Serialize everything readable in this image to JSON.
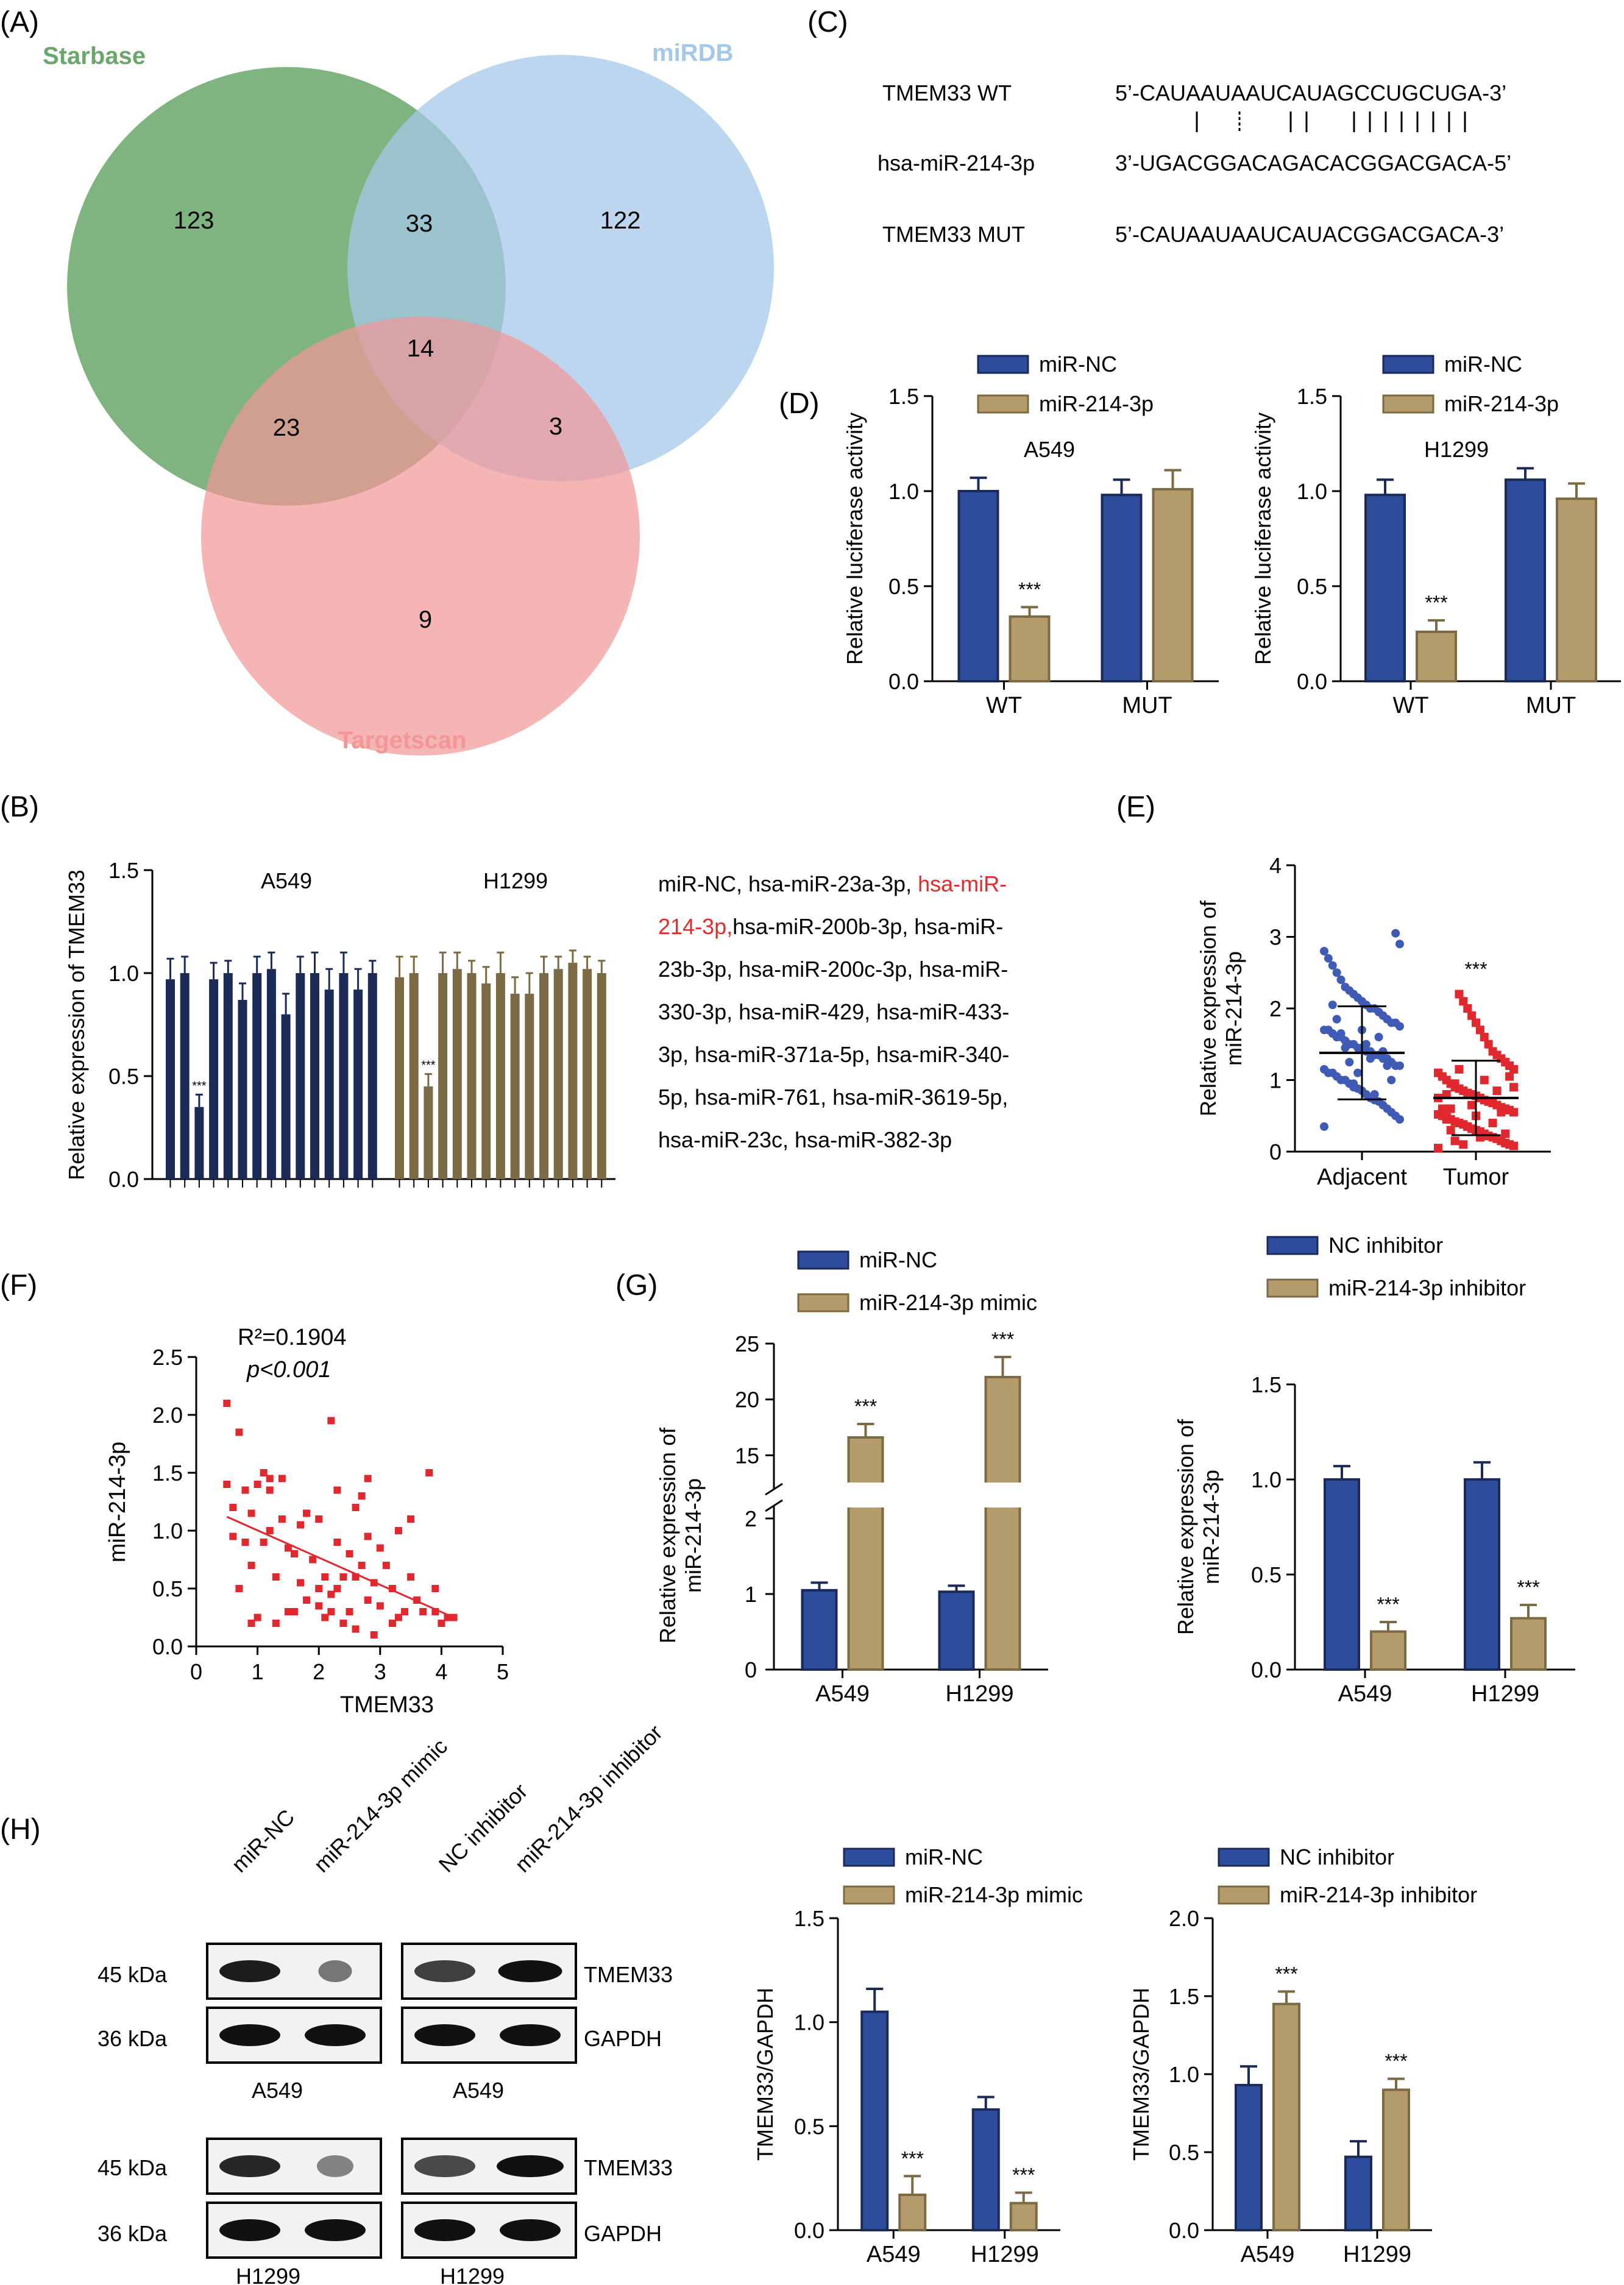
{
  "colors": {
    "blue": "#2E4C9C",
    "tan": "#B39B6C",
    "navy": "#1B2A57",
    "olive": "#7B6A44",
    "red": "#E8292B",
    "dotBlue": "#3F5BB5",
    "dotRed": "#E0282E",
    "starbase": "#69A76A",
    "mirdb": "#A4C8E8",
    "targetscan": "#F29696"
  },
  "panels": {
    "A": {
      "label": "(A)",
      "sets": {
        "starbase": "Starbase",
        "mirdb": "miRDB",
        "targetscan": "Targetscan"
      },
      "regions": {
        "starbase_only": "123",
        "starbase_mirdb": "33",
        "mirdb_only": "122",
        "all_three": "14",
        "starbase_targetscan": "23",
        "mirdb_targetscan": "3",
        "targetscan_only": "9"
      }
    },
    "B": {
      "label": "(B)",
      "mirna_list": [
        {
          "text": "miR-NC,  hsa-miR-23a-3p,  ",
          "red": "hsa-miR-"
        },
        {
          "red": "214-3p,",
          "text": "hsa-miR-200b-3p,     hsa-miR-"
        },
        {
          "text": "23b-3p,  hsa-miR-200c-3p,  hsa-miR-"
        },
        {
          "text": "330-3p,  hsa-miR-429,  hsa-miR-433-"
        },
        {
          "text": "3p,  hsa-miR-371a-5p,  hsa-miR-340-"
        },
        {
          "text": "5p,  hsa-miR-761,  hsa-miR-3619-5p,"
        },
        {
          "text": "hsa-miR-23c, hsa-miR-382-3p"
        }
      ]
    },
    "C": {
      "label": "(C)",
      "rows": [
        {
          "name": "TMEM33 WT",
          "seq": "5’-CAUAAUAAUCAUAGCCUGCUGA-3’"
        },
        {
          "name": "hsa-miR-214-3p",
          "seq": "3’-UGACGGACAGACACGGACGACA-5’"
        },
        {
          "name": "TMEM33 MUT",
          "seq": "5’-CAUAAUAAUCAUACGGACGACA-3’"
        }
      ]
    },
    "D": {
      "label": "(D)"
    },
    "E": {
      "label": "(E)"
    },
    "F": {
      "label": "(F)",
      "r2_label": "R²=0.1904",
      "p_label": "p<0.001"
    },
    "G": {
      "label": "(G)"
    },
    "H": {
      "label": "(H)",
      "lanes": [
        "miR-NC",
        "miR-214-3p mimic",
        "NC inhibitor",
        "miR-214-3p inhibitor"
      ],
      "kda": [
        "45 kDa",
        "36 kDa",
        "45 kDa",
        "36 kDa"
      ],
      "proteins": [
        "TMEM33",
        "GAPDH",
        "TMEM33",
        "GAPDH"
      ],
      "cells": [
        "A549",
        "A549",
        "H1299",
        "H1299"
      ]
    }
  },
  "chart_data": [
    {
      "id": "D_A549",
      "type": "bar",
      "title": "A549",
      "ylabel": "Relative luciferase activity",
      "categories": [
        "WT",
        "MUT"
      ],
      "ylim": [
        0,
        1.5
      ],
      "yticks": [
        0.0,
        0.5,
        1.0,
        1.5
      ],
      "legend": [
        "miR-NC",
        "miR-214-3p"
      ],
      "series": [
        {
          "name": "miR-NC",
          "values": [
            1.0,
            0.98
          ],
          "errors": [
            0.07,
            0.08
          ]
        },
        {
          "name": "miR-214-3p",
          "values": [
            0.34,
            1.01
          ],
          "errors": [
            0.05,
            0.1
          ]
        }
      ],
      "annotations": [
        {
          "category": 0,
          "series": 1,
          "text": "***"
        }
      ]
    },
    {
      "id": "D_H1299",
      "type": "bar",
      "title": "H1299",
      "ylabel": "Relative luciferase activity",
      "categories": [
        "WT",
        "MUT"
      ],
      "ylim": [
        0,
        1.5
      ],
      "yticks": [
        0.0,
        0.5,
        1.0,
        1.5
      ],
      "legend": [
        "miR-NC",
        "miR-214-3p"
      ],
      "series": [
        {
          "name": "miR-NC",
          "values": [
            0.98,
            1.06
          ],
          "errors": [
            0.08,
            0.06
          ]
        },
        {
          "name": "miR-214-3p",
          "values": [
            0.26,
            0.96
          ],
          "errors": [
            0.06,
            0.08
          ]
        }
      ],
      "annotations": [
        {
          "category": 0,
          "series": 1,
          "text": "***"
        }
      ]
    },
    {
      "id": "B",
      "type": "bar",
      "ylabel": "Relative expression of TMEM33",
      "ylim": [
        0,
        1.5
      ],
      "yticks": [
        0.0,
        0.5,
        1.0,
        1.5
      ],
      "groups": [
        "A549",
        "H1299"
      ],
      "series": [
        {
          "name": "A549",
          "values": [
            0.97,
            1.0,
            0.35,
            0.97,
            1.0,
            0.87,
            1.0,
            1.02,
            0.8,
            1.0,
            1.0,
            0.92,
            1.0,
            0.92,
            1.0
          ],
          "errors": [
            0.1,
            0.08,
            0.06,
            0.08,
            0.06,
            0.08,
            0.08,
            0.08,
            0.1,
            0.08,
            0.1,
            0.1,
            0.1,
            0.1,
            0.06
          ]
        },
        {
          "name": "H1299",
          "values": [
            0.98,
            1.0,
            0.45,
            1.0,
            1.02,
            1.0,
            0.95,
            1.0,
            0.9,
            0.9,
            1.0,
            1.02,
            1.05,
            1.02,
            1.0
          ],
          "errors": [
            0.1,
            0.08,
            0.06,
            0.1,
            0.08,
            0.06,
            0.08,
            0.1,
            0.08,
            0.1,
            0.08,
            0.06,
            0.06,
            0.06,
            0.06
          ]
        }
      ],
      "annotations": [
        {
          "series": 0,
          "index": 2,
          "text": "***"
        },
        {
          "series": 1,
          "index": 2,
          "text": "***"
        }
      ]
    },
    {
      "id": "E",
      "type": "scatter",
      "ylabel": "Relative expression of miR-214-3p",
      "categories": [
        "Adjacent",
        "Tumor"
      ],
      "ylim": [
        0,
        4
      ],
      "yticks": [
        0,
        1,
        2,
        3,
        4
      ],
      "series": [
        {
          "name": "Adjacent",
          "mean": 1.38,
          "sd": 0.65,
          "values": [
            0.35,
            0.45,
            0.5,
            0.55,
            0.6,
            0.65,
            0.7,
            0.72,
            0.75,
            0.8,
            0.85,
            0.88,
            0.9,
            0.95,
            1.0,
            1.0,
            1.05,
            1.1,
            1.1,
            1.15,
            1.2,
            1.2,
            1.25,
            1.3,
            1.3,
            1.35,
            1.35,
            1.4,
            1.4,
            1.45,
            1.45,
            1.5,
            1.5,
            1.55,
            1.6,
            1.6,
            1.65,
            1.7,
            1.7,
            1.75,
            1.8,
            1.8,
            1.85,
            1.9,
            1.95,
            2.0,
            2.0,
            2.05,
            2.1,
            2.15,
            2.2,
            2.25,
            2.3,
            2.4,
            2.5,
            2.6,
            2.7,
            2.8,
            2.9,
            3.05,
            1.0,
            1.2,
            1.4,
            1.6,
            0.8,
            1.3,
            1.5,
            1.7,
            1.1,
            0.95,
            1.25,
            1.45,
            1.65,
            1.85,
            2.05
          ]
        },
        {
          "name": "Tumor",
          "mean": 0.75,
          "sd": 0.52,
          "values": [
            0.05,
            0.08,
            0.1,
            0.12,
            0.15,
            0.18,
            0.2,
            0.22,
            0.25,
            0.28,
            0.3,
            0.32,
            0.35,
            0.38,
            0.4,
            0.42,
            0.45,
            0.48,
            0.5,
            0.52,
            0.55,
            0.58,
            0.6,
            0.62,
            0.65,
            0.68,
            0.7,
            0.72,
            0.75,
            0.78,
            0.8,
            0.82,
            0.85,
            0.88,
            0.9,
            0.95,
            1.0,
            1.05,
            1.1,
            1.15,
            1.2,
            1.25,
            1.3,
            1.35,
            1.4,
            1.5,
            1.6,
            1.7,
            1.8,
            1.9,
            2.0,
            2.1,
            2.2,
            0.15,
            0.3,
            0.45,
            0.6,
            0.75,
            0.9,
            1.05,
            0.25,
            0.55,
            0.85,
            0.4,
            0.7,
            1.0,
            0.2,
            0.5,
            0.65,
            0.35,
            0.1,
            1.15,
            0.95,
            0.6,
            0.8
          ]
        }
      ],
      "annotations": [
        {
          "category": 1,
          "text": "***"
        }
      ]
    },
    {
      "id": "F",
      "type": "scatter",
      "xlabel": "TMEM33",
      "ylabel": "miR-214-3p",
      "xlim": [
        0,
        5
      ],
      "ylim": [
        0,
        2.5
      ],
      "xticks": [
        0,
        1,
        2,
        3,
        4,
        5
      ],
      "yticks": [
        0.0,
        0.5,
        1.0,
        1.5,
        2.0,
        2.5
      ],
      "fit": {
        "x": [
          0.5,
          4.2
        ],
        "y": [
          1.12,
          0.25
        ]
      },
      "points": [
        [
          0.5,
          2.1
        ],
        [
          0.5,
          1.4
        ],
        [
          0.6,
          1.2
        ],
        [
          0.6,
          0.95
        ],
        [
          0.7,
          1.85
        ],
        [
          0.7,
          0.5
        ],
        [
          0.8,
          1.35
        ],
        [
          0.8,
          0.9
        ],
        [
          0.9,
          0.7
        ],
        [
          0.9,
          1.15
        ],
        [
          1.0,
          1.4
        ],
        [
          1.0,
          0.25
        ],
        [
          1.1,
          1.5
        ],
        [
          1.1,
          0.9
        ],
        [
          1.2,
          1.0
        ],
        [
          1.2,
          1.35
        ],
        [
          1.3,
          0.6
        ],
        [
          1.3,
          0.2
        ],
        [
          1.4,
          1.45
        ],
        [
          1.4,
          1.1
        ],
        [
          1.5,
          0.85
        ],
        [
          1.5,
          0.3
        ],
        [
          1.6,
          0.8
        ],
        [
          1.7,
          1.05
        ],
        [
          1.7,
          0.55
        ],
        [
          1.8,
          0.4
        ],
        [
          1.8,
          1.15
        ],
        [
          1.9,
          0.75
        ],
        [
          2.0,
          0.35
        ],
        [
          2.0,
          0.5
        ],
        [
          2.0,
          1.1
        ],
        [
          2.1,
          0.25
        ],
        [
          2.1,
          0.6
        ],
        [
          2.2,
          1.95
        ],
        [
          2.2,
          0.45
        ],
        [
          2.2,
          0.3
        ],
        [
          2.3,
          0.9
        ],
        [
          2.3,
          0.5
        ],
        [
          2.3,
          1.35
        ],
        [
          2.4,
          0.6
        ],
        [
          2.4,
          0.2
        ],
        [
          2.5,
          0.3
        ],
        [
          2.5,
          0.8
        ],
        [
          2.6,
          1.2
        ],
        [
          2.6,
          0.15
        ],
        [
          2.7,
          0.7
        ],
        [
          2.7,
          1.3
        ],
        [
          2.8,
          1.45
        ],
        [
          2.8,
          0.4
        ],
        [
          2.8,
          0.95
        ],
        [
          2.9,
          0.55
        ],
        [
          2.9,
          0.1
        ],
        [
          3.0,
          0.85
        ],
        [
          3.0,
          0.35
        ],
        [
          3.1,
          0.7
        ],
        [
          3.2,
          0.5
        ],
        [
          3.2,
          0.2
        ],
        [
          3.3,
          1.0
        ],
        [
          3.4,
          0.3
        ],
        [
          3.5,
          1.1
        ],
        [
          3.5,
          0.6
        ],
        [
          3.6,
          0.4
        ],
        [
          3.7,
          0.3
        ],
        [
          3.8,
          1.5
        ],
        [
          3.9,
          0.5
        ],
        [
          3.9,
          0.3
        ],
        [
          4.0,
          0.2
        ],
        [
          4.1,
          0.25
        ],
        [
          4.2,
          0.25
        ],
        [
          0.9,
          0.2
        ],
        [
          1.2,
          1.45
        ],
        [
          1.6,
          0.3
        ],
        [
          2.6,
          0.6
        ],
        [
          3.3,
          0.25
        ]
      ]
    },
    {
      "id": "G_left",
      "type": "bar",
      "ylabel": "Relative expression of miR-214-3p",
      "categories": [
        "A549",
        "H1299"
      ],
      "yticks_lower": [
        0,
        1,
        2
      ],
      "yticks_upper": [
        15,
        20,
        25
      ],
      "axis_break": [
        2,
        13
      ],
      "legend": [
        "miR-NC",
        "miR-214-3p mimic"
      ],
      "series": [
        {
          "name": "miR-NC",
          "values": [
            1.05,
            1.03
          ],
          "errors": [
            0.1,
            0.08
          ]
        },
        {
          "name": "miR-214-3p mimic",
          "values": [
            16.6,
            22.0
          ],
          "errors": [
            1.2,
            1.8
          ]
        }
      ],
      "annotations": [
        {
          "category": 0,
          "series": 1,
          "text": "***"
        },
        {
          "category": 1,
          "series": 1,
          "text": "***"
        }
      ]
    },
    {
      "id": "G_right",
      "type": "bar",
      "ylabel": "Relative expression of miR-214-3p",
      "categories": [
        "A549",
        "H1299"
      ],
      "ylim": [
        0,
        1.5
      ],
      "yticks": [
        0.0,
        0.5,
        1.0,
        1.5
      ],
      "legend": [
        "NC inhibitor",
        "miR-214-3p inhibitor"
      ],
      "series": [
        {
          "name": "NC inhibitor",
          "values": [
            1.0,
            1.0
          ],
          "errors": [
            0.07,
            0.09
          ]
        },
        {
          "name": "miR-214-3p inhibitor",
          "values": [
            0.2,
            0.27
          ],
          "errors": [
            0.05,
            0.07
          ]
        }
      ],
      "annotations": [
        {
          "category": 0,
          "series": 1,
          "text": "***"
        },
        {
          "category": 1,
          "series": 1,
          "text": "***"
        }
      ]
    },
    {
      "id": "H_left",
      "type": "bar",
      "ylabel": "TMEM33/GAPDH",
      "categories": [
        "A549",
        "H1299"
      ],
      "ylim": [
        0,
        1.5
      ],
      "yticks": [
        0.0,
        0.5,
        1.0,
        1.5
      ],
      "legend": [
        "miR-NC",
        "miR-214-3p mimic"
      ],
      "series": [
        {
          "name": "miR-NC",
          "values": [
            1.05,
            0.58
          ],
          "errors": [
            0.11,
            0.06
          ]
        },
        {
          "name": "miR-214-3p mimic",
          "values": [
            0.17,
            0.13
          ],
          "errors": [
            0.09,
            0.05
          ]
        }
      ],
      "annotations": [
        {
          "category": 0,
          "series": 1,
          "text": "***"
        },
        {
          "category": 1,
          "series": 1,
          "text": "***"
        }
      ]
    },
    {
      "id": "H_right",
      "type": "bar",
      "ylabel": "TMEM33/GAPDH",
      "categories": [
        "A549",
        "H1299"
      ],
      "ylim": [
        0,
        2.0
      ],
      "yticks": [
        0.0,
        0.5,
        1.0,
        1.5,
        2.0
      ],
      "legend": [
        "NC inhibitor",
        "miR-214-3p inhibitor"
      ],
      "series": [
        {
          "name": "NC inhibitor",
          "values": [
            0.93,
            0.47
          ],
          "errors": [
            0.12,
            0.1
          ]
        },
        {
          "name": "miR-214-3p inhibitor",
          "values": [
            1.45,
            0.9
          ],
          "errors": [
            0.08,
            0.07
          ]
        }
      ],
      "annotations": [
        {
          "category": 0,
          "series": 1,
          "text": "***"
        },
        {
          "category": 1,
          "series": 1,
          "text": "***"
        }
      ]
    }
  ]
}
